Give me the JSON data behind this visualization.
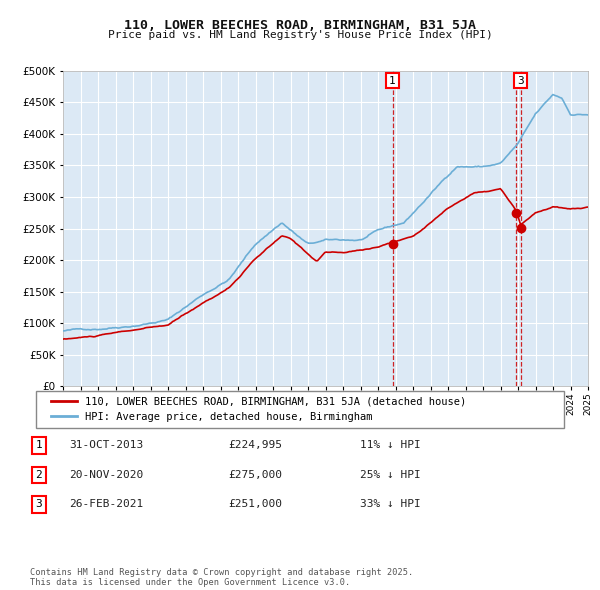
{
  "title": "110, LOWER BEECHES ROAD, BIRMINGHAM, B31 5JA",
  "subtitle": "Price paid vs. HM Land Registry's House Price Index (HPI)",
  "background_color": "#ffffff",
  "chart_bg_color": "#dce9f5",
  "grid_color": "#ffffff",
  "hpi_color": "#6baed6",
  "price_color": "#cc0000",
  "ylim": [
    0,
    500000
  ],
  "yticks": [
    0,
    50000,
    100000,
    150000,
    200000,
    250000,
    300000,
    350000,
    400000,
    450000,
    500000
  ],
  "legend_label_red": "110, LOWER BEECHES ROAD, BIRMINGHAM, B31 5JA (detached house)",
  "legend_label_blue": "HPI: Average price, detached house, Birmingham",
  "event1_date": 2013.83,
  "event1_price": 224995,
  "event1_label": "1",
  "event2_date": 2020.89,
  "event2_price": 275000,
  "event2_label": "2",
  "event3_date": 2021.15,
  "event3_price": 251000,
  "event3_label": "3",
  "table_data": [
    [
      "1",
      "31-OCT-2013",
      "£224,995",
      "11% ↓ HPI"
    ],
    [
      "2",
      "20-NOV-2020",
      "£275,000",
      "25% ↓ HPI"
    ],
    [
      "3",
      "26-FEB-2021",
      "£251,000",
      "33% ↓ HPI"
    ]
  ],
  "footer": "Contains HM Land Registry data © Crown copyright and database right 2025.\nThis data is licensed under the Open Government Licence v3.0.",
  "xstart": 1995,
  "xend": 2025
}
